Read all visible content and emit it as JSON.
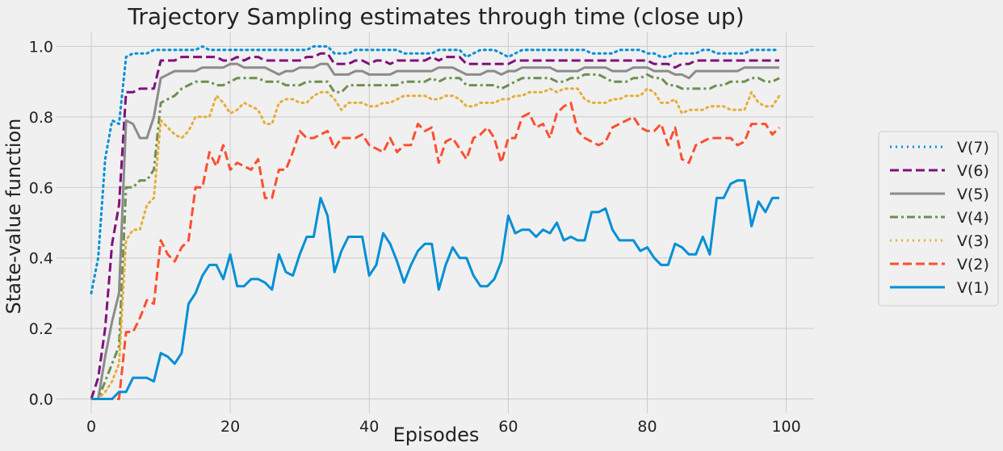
{
  "chart_data": {
    "type": "line",
    "title": "Trajectory Sampling estimates through time (close up)",
    "xlabel": "Episodes",
    "ylabel": "State-value function",
    "xlim": [
      -5,
      104
    ],
    "ylim": [
      -0.04,
      1.04
    ],
    "xticks": [
      0,
      20,
      40,
      60,
      80,
      100
    ],
    "yticks": [
      0.0,
      0.2,
      0.4,
      0.6,
      0.8,
      1.0
    ],
    "grid": true,
    "legend_position": "right",
    "series": [
      {
        "name": "V(7)",
        "color": "#008fd5",
        "dash": "dotted",
        "values": [
          0.3,
          0.4,
          0.68,
          0.79,
          0.78,
          0.97,
          0.98,
          0.98,
          0.98,
          0.99,
          0.99,
          0.99,
          0.99,
          0.99,
          0.99,
          0.99,
          1.0,
          0.99,
          0.99,
          0.99,
          0.99,
          0.99,
          0.99,
          0.99,
          0.99,
          0.99,
          0.99,
          0.99,
          0.99,
          0.99,
          0.99,
          0.99,
          1.0,
          1.0,
          1.0,
          0.98,
          0.98,
          0.98,
          0.99,
          0.99,
          0.99,
          0.99,
          0.99,
          0.99,
          0.99,
          0.98,
          0.98,
          0.98,
          0.98,
          0.98,
          0.99,
          0.99,
          0.99,
          0.99,
          0.97,
          0.98,
          0.99,
          0.99,
          0.99,
          0.98,
          0.97,
          0.98,
          0.99,
          0.99,
          0.99,
          0.99,
          0.99,
          0.99,
          0.99,
          0.99,
          0.99,
          0.99,
          0.98,
          0.98,
          0.98,
          0.98,
          0.99,
          0.99,
          0.99,
          0.99,
          0.98,
          0.98,
          0.97,
          0.97,
          0.98,
          0.98,
          0.98,
          0.98,
          0.99,
          0.99,
          0.98,
          0.98,
          0.98,
          0.98,
          0.98,
          0.99,
          0.99,
          0.99,
          0.99,
          0.99
        ]
      },
      {
        "name": "V(6)",
        "color": "#810f7c",
        "dash": "dashed",
        "values": [
          0.0,
          0.06,
          0.2,
          0.44,
          0.55,
          0.87,
          0.87,
          0.88,
          0.88,
          0.88,
          0.96,
          0.96,
          0.96,
          0.97,
          0.97,
          0.97,
          0.97,
          0.97,
          0.97,
          0.96,
          0.96,
          0.97,
          0.96,
          0.97,
          0.97,
          0.96,
          0.96,
          0.96,
          0.96,
          0.96,
          0.96,
          0.97,
          0.97,
          0.98,
          0.98,
          0.95,
          0.95,
          0.95,
          0.96,
          0.96,
          0.95,
          0.96,
          0.96,
          0.95,
          0.96,
          0.96,
          0.96,
          0.96,
          0.96,
          0.97,
          0.96,
          0.97,
          0.97,
          0.97,
          0.95,
          0.95,
          0.95,
          0.95,
          0.95,
          0.95,
          0.95,
          0.96,
          0.96,
          0.96,
          0.96,
          0.96,
          0.96,
          0.96,
          0.96,
          0.96,
          0.96,
          0.96,
          0.96,
          0.96,
          0.96,
          0.96,
          0.96,
          0.96,
          0.96,
          0.96,
          0.96,
          0.95,
          0.95,
          0.95,
          0.94,
          0.95,
          0.95,
          0.96,
          0.96,
          0.96,
          0.96,
          0.96,
          0.96,
          0.96,
          0.96,
          0.96,
          0.96,
          0.96,
          0.96,
          0.96
        ]
      },
      {
        "name": "V(5)",
        "color": "#8b8b8b",
        "dash": "solid",
        "values": [
          0.0,
          0.0,
          0.12,
          0.22,
          0.3,
          0.79,
          0.78,
          0.74,
          0.74,
          0.8,
          0.91,
          0.92,
          0.93,
          0.93,
          0.93,
          0.93,
          0.94,
          0.94,
          0.94,
          0.94,
          0.95,
          0.95,
          0.94,
          0.94,
          0.94,
          0.94,
          0.93,
          0.92,
          0.93,
          0.93,
          0.94,
          0.94,
          0.94,
          0.95,
          0.95,
          0.92,
          0.92,
          0.92,
          0.93,
          0.93,
          0.92,
          0.92,
          0.92,
          0.92,
          0.93,
          0.93,
          0.93,
          0.93,
          0.93,
          0.93,
          0.94,
          0.94,
          0.94,
          0.93,
          0.92,
          0.92,
          0.92,
          0.93,
          0.93,
          0.92,
          0.93,
          0.93,
          0.94,
          0.94,
          0.94,
          0.94,
          0.94,
          0.93,
          0.93,
          0.93,
          0.93,
          0.94,
          0.94,
          0.94,
          0.94,
          0.93,
          0.93,
          0.93,
          0.94,
          0.94,
          0.94,
          0.93,
          0.93,
          0.93,
          0.92,
          0.92,
          0.91,
          0.93,
          0.93,
          0.93,
          0.93,
          0.93,
          0.93,
          0.93,
          0.94,
          0.94,
          0.94,
          0.94,
          0.94,
          0.94
        ]
      },
      {
        "name": "V(4)",
        "color": "#6d904f",
        "dash": "dashdot",
        "values": [
          0.0,
          0.0,
          0.05,
          0.1,
          0.15,
          0.6,
          0.6,
          0.62,
          0.62,
          0.65,
          0.84,
          0.85,
          0.86,
          0.88,
          0.89,
          0.9,
          0.9,
          0.9,
          0.89,
          0.89,
          0.9,
          0.91,
          0.91,
          0.91,
          0.91,
          0.9,
          0.9,
          0.9,
          0.89,
          0.89,
          0.89,
          0.9,
          0.9,
          0.9,
          0.9,
          0.87,
          0.87,
          0.89,
          0.89,
          0.89,
          0.89,
          0.89,
          0.89,
          0.89,
          0.89,
          0.9,
          0.9,
          0.9,
          0.9,
          0.91,
          0.9,
          0.91,
          0.91,
          0.91,
          0.89,
          0.89,
          0.89,
          0.89,
          0.89,
          0.88,
          0.89,
          0.9,
          0.91,
          0.91,
          0.91,
          0.91,
          0.91,
          0.9,
          0.9,
          0.91,
          0.91,
          0.92,
          0.92,
          0.92,
          0.91,
          0.9,
          0.9,
          0.9,
          0.91,
          0.91,
          0.92,
          0.91,
          0.91,
          0.89,
          0.89,
          0.88,
          0.88,
          0.88,
          0.88,
          0.88,
          0.89,
          0.89,
          0.9,
          0.9,
          0.9,
          0.91,
          0.91,
          0.9,
          0.9,
          0.91
        ]
      },
      {
        "name": "V(3)",
        "color": "#e5ae38",
        "dash": "dotted",
        "values": [
          0.0,
          0.0,
          0.02,
          0.05,
          0.1,
          0.45,
          0.48,
          0.48,
          0.55,
          0.57,
          0.79,
          0.77,
          0.75,
          0.74,
          0.76,
          0.8,
          0.8,
          0.8,
          0.86,
          0.84,
          0.81,
          0.82,
          0.84,
          0.83,
          0.82,
          0.78,
          0.78,
          0.84,
          0.85,
          0.85,
          0.84,
          0.84,
          0.86,
          0.87,
          0.87,
          0.85,
          0.82,
          0.84,
          0.84,
          0.84,
          0.83,
          0.83,
          0.84,
          0.84,
          0.85,
          0.86,
          0.86,
          0.86,
          0.86,
          0.85,
          0.85,
          0.86,
          0.86,
          0.85,
          0.83,
          0.83,
          0.84,
          0.84,
          0.84,
          0.85,
          0.85,
          0.86,
          0.86,
          0.87,
          0.87,
          0.87,
          0.88,
          0.87,
          0.88,
          0.88,
          0.88,
          0.85,
          0.84,
          0.84,
          0.84,
          0.85,
          0.85,
          0.86,
          0.86,
          0.86,
          0.88,
          0.87,
          0.84,
          0.84,
          0.85,
          0.81,
          0.82,
          0.82,
          0.82,
          0.83,
          0.83,
          0.83,
          0.82,
          0.82,
          0.82,
          0.87,
          0.84,
          0.83,
          0.83,
          0.86
        ]
      },
      {
        "name": "V(2)",
        "color": "#fc4f30",
        "dash": "dashed",
        "values": [
          0.0,
          0.0,
          0.0,
          0.0,
          0.0,
          0.19,
          0.19,
          0.23,
          0.28,
          0.27,
          0.45,
          0.41,
          0.39,
          0.43,
          0.45,
          0.6,
          0.6,
          0.7,
          0.66,
          0.72,
          0.65,
          0.67,
          0.66,
          0.65,
          0.68,
          0.57,
          0.57,
          0.65,
          0.65,
          0.7,
          0.76,
          0.74,
          0.74,
          0.75,
          0.76,
          0.71,
          0.74,
          0.74,
          0.74,
          0.75,
          0.72,
          0.71,
          0.7,
          0.74,
          0.7,
          0.72,
          0.72,
          0.78,
          0.76,
          0.77,
          0.67,
          0.73,
          0.74,
          0.71,
          0.68,
          0.74,
          0.75,
          0.77,
          0.74,
          0.67,
          0.74,
          0.74,
          0.8,
          0.81,
          0.77,
          0.78,
          0.74,
          0.81,
          0.83,
          0.84,
          0.76,
          0.74,
          0.73,
          0.72,
          0.73,
          0.77,
          0.78,
          0.79,
          0.8,
          0.77,
          0.76,
          0.76,
          0.78,
          0.72,
          0.77,
          0.68,
          0.67,
          0.72,
          0.73,
          0.74,
          0.74,
          0.74,
          0.74,
          0.72,
          0.73,
          0.78,
          0.78,
          0.78,
          0.75,
          0.77
        ]
      },
      {
        "name": "V(1)",
        "color": "#008fd5",
        "dash": "solid",
        "values": [
          0.0,
          0.0,
          0.0,
          0.0,
          0.02,
          0.02,
          0.06,
          0.06,
          0.06,
          0.05,
          0.13,
          0.12,
          0.1,
          0.13,
          0.27,
          0.3,
          0.35,
          0.38,
          0.38,
          0.34,
          0.41,
          0.32,
          0.32,
          0.34,
          0.34,
          0.33,
          0.31,
          0.41,
          0.36,
          0.35,
          0.41,
          0.46,
          0.46,
          0.57,
          0.52,
          0.36,
          0.42,
          0.46,
          0.46,
          0.46,
          0.35,
          0.38,
          0.47,
          0.44,
          0.39,
          0.33,
          0.38,
          0.42,
          0.44,
          0.44,
          0.31,
          0.38,
          0.43,
          0.4,
          0.4,
          0.35,
          0.32,
          0.32,
          0.34,
          0.39,
          0.52,
          0.47,
          0.48,
          0.48,
          0.46,
          0.48,
          0.47,
          0.5,
          0.45,
          0.46,
          0.45,
          0.45,
          0.53,
          0.53,
          0.54,
          0.48,
          0.45,
          0.45,
          0.45,
          0.42,
          0.43,
          0.4,
          0.38,
          0.38,
          0.44,
          0.43,
          0.41,
          0.41,
          0.46,
          0.41,
          0.57,
          0.57,
          0.61,
          0.62,
          0.62,
          0.49,
          0.56,
          0.53,
          0.57,
          0.57
        ]
      }
    ]
  }
}
